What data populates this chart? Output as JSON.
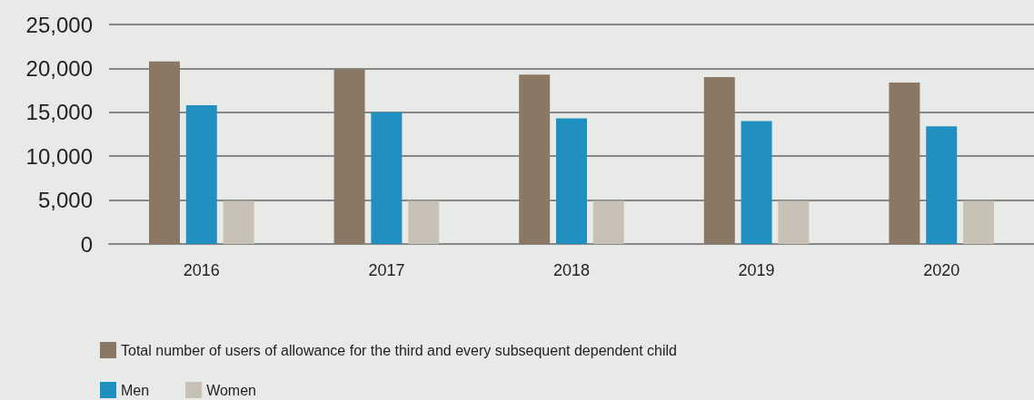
{
  "chart_data": {
    "type": "bar",
    "categories": [
      "2016",
      "2017",
      "2018",
      "2019",
      "2020"
    ],
    "series": [
      {
        "name": "Total number of users of allowance for the third and every subsequent dependent child",
        "color": "#8a7865",
        "values": [
          20800,
          19900,
          19300,
          19000,
          18400
        ]
      },
      {
        "name": "Men",
        "color": "#2090c0",
        "values": [
          15800,
          15000,
          14300,
          14000,
          13400
        ]
      },
      {
        "name": "Women",
        "color": "#c7c0b4",
        "values": [
          4900,
          4900,
          4900,
          4900,
          4900
        ]
      }
    ],
    "ylim": [
      0,
      25000
    ],
    "yticks": [
      0,
      {
        "value": 5000,
        "label": "5,000"
      },
      {
        "value": 10000,
        "label": "10,000"
      },
      {
        "value": 15000,
        "label": "15,000"
      },
      {
        "value": 20000,
        "label": "20,000"
      },
      {
        "value": 25000,
        "label": "25,000"
      }
    ],
    "grid": "y",
    "legend": "bottom"
  }
}
